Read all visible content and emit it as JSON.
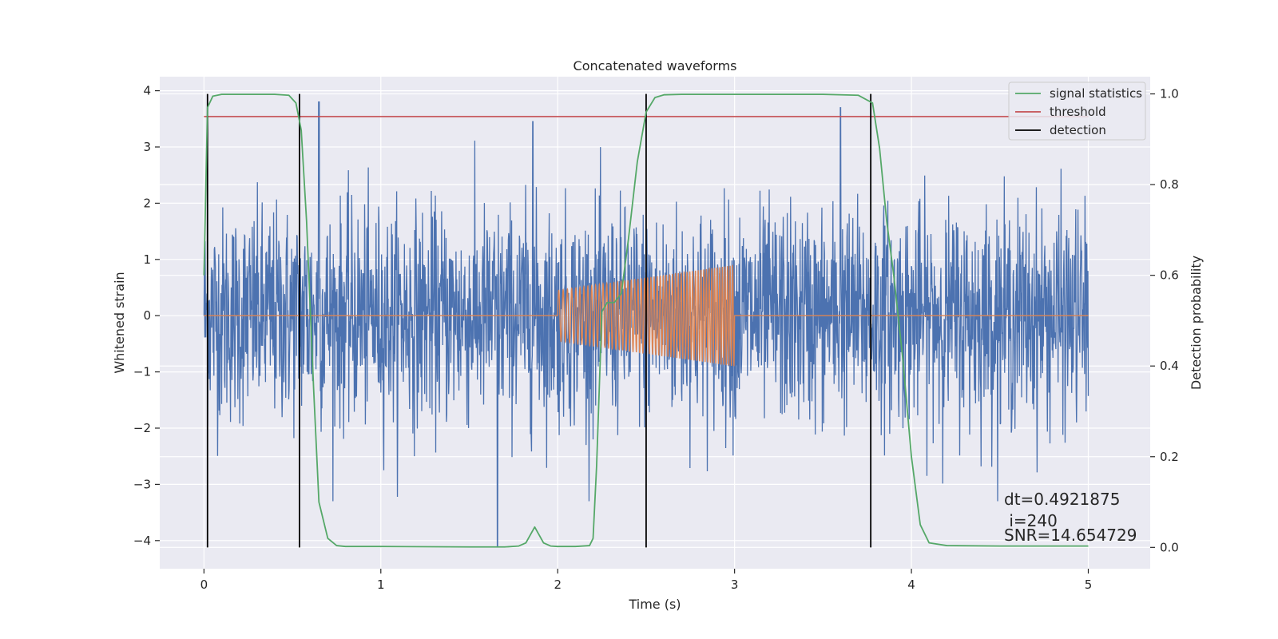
{
  "chart_data": {
    "type": "line",
    "title": "Concatenated waveforms",
    "xlabel": "Time (s)",
    "ylabel_left": "Whitened strain",
    "ylabel_right": "Detection probability",
    "xlim": [
      -0.25,
      5.35
    ],
    "ylim_left": [
      -4.5,
      4.25
    ],
    "ylim_right": [
      -0.047,
      1.038
    ],
    "x_ticks": [
      0,
      1,
      2,
      3,
      4,
      5
    ],
    "x_tick_labels": [
      "0",
      "1",
      "2",
      "3",
      "4",
      "5"
    ],
    "y_left_ticks": [
      4,
      3,
      2,
      1,
      0,
      -1,
      -2,
      -3,
      -4
    ],
    "y_left_tick_labels": [
      "4",
      "3",
      "2",
      "1",
      "0",
      "−1",
      "−2",
      "−3",
      "−4"
    ],
    "y_right_ticks": [
      1.0,
      0.8,
      0.6,
      0.4,
      0.2,
      0.0
    ],
    "y_right_tick_labels": [
      "1.0",
      "0.8",
      "0.6",
      "0.4",
      "0.2",
      "0.0"
    ],
    "grid": true,
    "legend_position": "top-right",
    "background_color": "#eaeaf2",
    "series": [
      {
        "name": "signal statistics",
        "axis": "right",
        "color": "#55a868",
        "x": [
          0.0,
          0.02,
          0.05,
          0.1,
          0.2,
          0.3,
          0.4,
          0.48,
          0.52,
          0.55,
          0.58,
          0.62,
          0.65,
          0.7,
          0.75,
          0.8,
          1.0,
          1.5,
          1.7,
          1.78,
          1.82,
          1.87,
          1.92,
          1.96,
          2.0,
          2.1,
          2.18,
          2.2,
          2.22,
          2.25,
          2.28,
          2.32,
          2.36,
          2.4,
          2.45,
          2.5,
          2.55,
          2.6,
          2.7,
          3.0,
          3.5,
          3.7,
          3.78,
          3.82,
          3.86,
          3.9,
          3.95,
          4.0,
          4.05,
          4.1,
          4.2,
          4.5,
          5.0
        ],
        "y": [
          0.6,
          0.97,
          0.995,
          0.999,
          0.999,
          0.999,
          0.999,
          0.997,
          0.98,
          0.92,
          0.72,
          0.35,
          0.1,
          0.02,
          0.004,
          0.002,
          0.002,
          0.001,
          0.001,
          0.003,
          0.01,
          0.045,
          0.01,
          0.003,
          0.002,
          0.002,
          0.004,
          0.02,
          0.18,
          0.52,
          0.54,
          0.54,
          0.56,
          0.68,
          0.85,
          0.96,
          0.992,
          0.998,
          0.999,
          0.999,
          0.999,
          0.997,
          0.98,
          0.88,
          0.72,
          0.6,
          0.42,
          0.2,
          0.05,
          0.01,
          0.004,
          0.003,
          0.003
        ]
      },
      {
        "name": "threshold",
        "axis": "right",
        "color": "#c44e52",
        "x": [
          0.0,
          5.0
        ],
        "y": [
          0.95,
          0.95
        ]
      },
      {
        "name": "detection",
        "axis": "right",
        "color": "#000000",
        "x": [
          0.02,
          0.54,
          2.5,
          3.77
        ],
        "y": [
          1.0,
          1.0,
          1.0,
          1.0
        ]
      },
      {
        "name": "",
        "axis": "left",
        "color": "#4c72b0",
        "description_points": "whitened strain noise, roughly uniform over 0-5 s",
        "x": [
          0.0,
          0.65,
          1.66,
          1.86,
          3.6
        ],
        "y": [
          0.0,
          3.8,
          -4.1,
          3.45,
          3.7
        ]
      },
      {
        "name": "",
        "axis": "left",
        "color": "#dd8452",
        "x": [
          0.0,
          2.0,
          2.0,
          3.0,
          3.0,
          5.0
        ],
        "y": [
          0.0,
          0.0,
          0.45,
          0.9,
          0.0,
          0.0
        ]
      }
    ],
    "annotations": [
      "dt=0.4921875",
      " i=240",
      "SNR=14.654729"
    ]
  }
}
